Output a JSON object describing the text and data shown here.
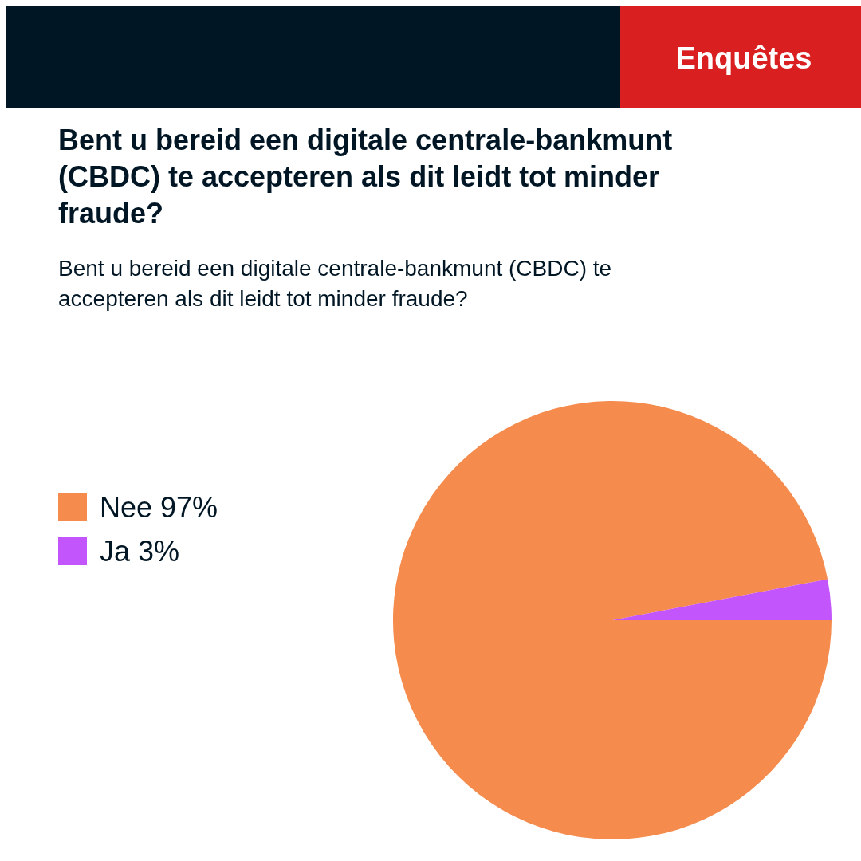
{
  "chart_data": {
    "type": "pie",
    "title": "Bent u bereid een digitale centrale-bankmunt (CBDC) te accepteren als dit leidt tot minder fraude?",
    "subtitle": "Bent u bereid een digitale centrale-bankmunt (CBDC) te accepteren als dit leidt tot minder fraude?",
    "annotations": [
      "Enquêtes"
    ],
    "categories": [
      "Nee",
      "Ja"
    ],
    "values": [
      97,
      3
    ],
    "value_labels": [
      "97%",
      "3%"
    ],
    "colors": [
      "#f58b4c",
      "#c355fc"
    ],
    "legend": "left"
  }
}
